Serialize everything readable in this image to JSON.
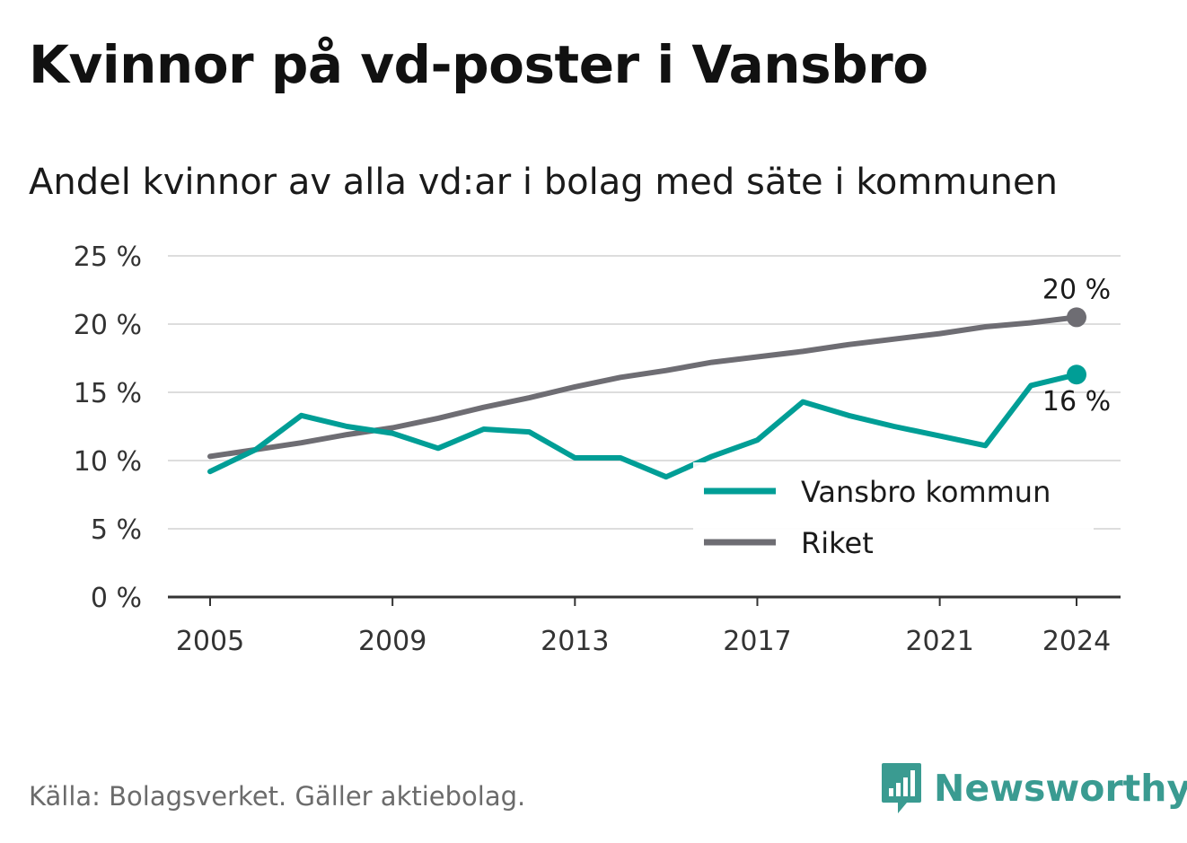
{
  "title": "Kvinnor på vd-poster i Vansbro",
  "subtitle": "Andel kvinnor av alla vd:ar i bolag med säte i kommunen",
  "source": "Källa: Bolagsverket. Gäller aktiebolag.",
  "brand": {
    "name": "Newsworthy",
    "icon": "newsworthy-logo-icon"
  },
  "colors": {
    "vansbro": "#009e96",
    "riket": "#6e6d73",
    "grid": "#dddddd",
    "axis": "#333333"
  },
  "chart_data": {
    "type": "line",
    "x": [
      2005,
      2006,
      2007,
      2008,
      2009,
      2010,
      2011,
      2012,
      2013,
      2014,
      2015,
      2016,
      2017,
      2018,
      2019,
      2020,
      2021,
      2022,
      2023,
      2024
    ],
    "x_ticks": [
      2005,
      2009,
      2013,
      2017,
      2021,
      2024
    ],
    "y_ticks": [
      0,
      5,
      10,
      15,
      20,
      25
    ],
    "y_tick_labels": [
      "0 %",
      "5 %",
      "10 %",
      "15 %",
      "20 %",
      "25 %"
    ],
    "ylim": [
      0,
      25
    ],
    "grid": true,
    "legend_position": "bottom-right",
    "series": [
      {
        "name": "Vansbro kommun",
        "color": "#009e96",
        "values": [
          9.2,
          10.8,
          13.3,
          12.5,
          12.0,
          10.9,
          12.3,
          12.1,
          10.2,
          10.2,
          8.8,
          10.3,
          11.5,
          14.3,
          13.3,
          12.5,
          11.8,
          11.1,
          15.5,
          16.3
        ],
        "end_label": "16 %"
      },
      {
        "name": "Riket",
        "color": "#6e6d73",
        "values": [
          10.3,
          10.8,
          11.3,
          11.9,
          12.4,
          13.1,
          13.9,
          14.6,
          15.4,
          16.1,
          16.6,
          17.2,
          17.6,
          18.0,
          18.5,
          18.9,
          19.3,
          19.8,
          20.1,
          20.5
        ],
        "end_label": "20 %"
      }
    ]
  }
}
